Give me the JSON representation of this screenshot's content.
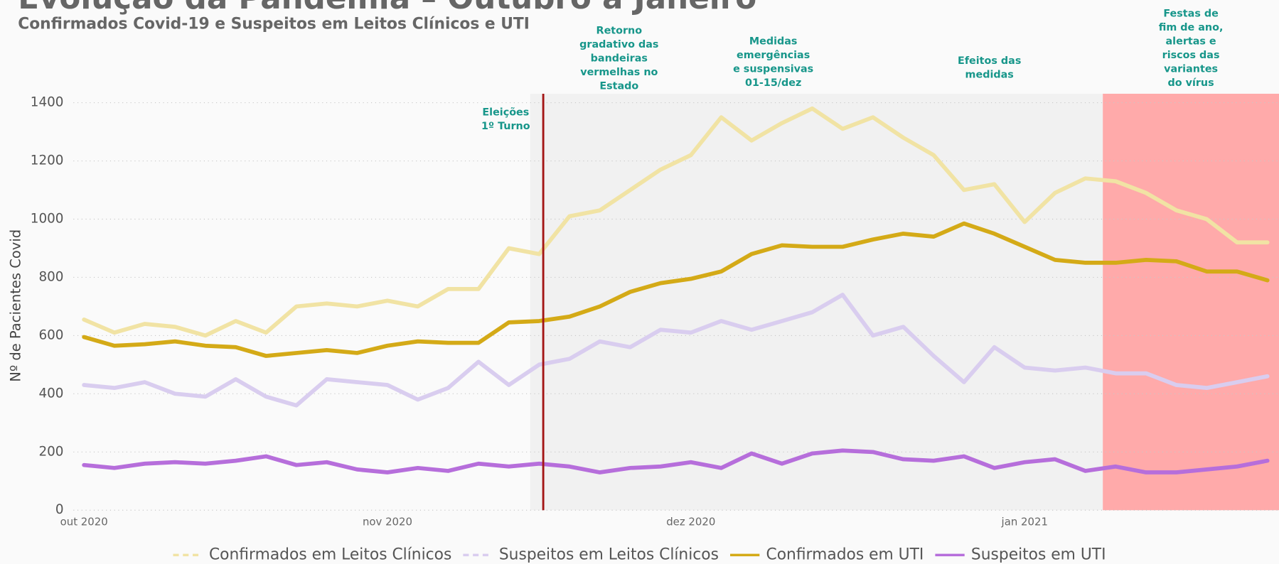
{
  "chart_data": {
    "type": "line",
    "title": "Evolução da Pandemia – Outubro a Janeiro",
    "subtitle": "Confirmados Covid-19 e Suspeitos em Leitos Clínicos e UTI",
    "y_label": "Nº de Pacientes Covid",
    "categories": [
      "out 2020",
      null,
      null,
      null,
      null,
      null,
      null,
      null,
      null,
      null,
      "nov 2020",
      null,
      null,
      null,
      null,
      null,
      null,
      null,
      null,
      null,
      "dez 2020",
      null,
      null,
      null,
      null,
      null,
      null,
      null,
      null,
      null,
      null,
      "jan 2021",
      null,
      null,
      null,
      null,
      null,
      null,
      null,
      null
    ],
    "ylim": [
      0,
      1400
    ],
    "yticks": [
      0,
      200,
      400,
      600,
      800,
      1000,
      1200,
      1400
    ],
    "grid": true,
    "legend": "bottom",
    "series": [
      {
        "name": "Confirmados em Leitos Clínicos",
        "color": "#f1e3a4",
        "dashed": true,
        "values": [
          655,
          610,
          640,
          630,
          600,
          650,
          610,
          700,
          710,
          700,
          720,
          700,
          760,
          760,
          900,
          880,
          1010,
          1030,
          1100,
          1170,
          1220,
          1350,
          1270,
          1330,
          1380,
          1310,
          1350,
          1280,
          1220,
          1100,
          1120,
          990,
          1090,
          1140,
          1130,
          1090,
          1030,
          1000,
          920,
          920
        ]
      },
      {
        "name": "Suspeitos em Leitos Clínicos",
        "color": "#d9cdef",
        "dashed": true,
        "values": [
          430,
          420,
          440,
          400,
          390,
          450,
          390,
          360,
          450,
          440,
          430,
          380,
          420,
          510,
          430,
          500,
          520,
          580,
          560,
          620,
          610,
          650,
          620,
          650,
          680,
          740,
          600,
          630,
          530,
          440,
          560,
          490,
          480,
          490,
          470,
          470,
          430,
          420,
          440,
          460
        ]
      },
      {
        "name": "Confirmados em UTI",
        "color": "#d4aa17",
        "dashed": false,
        "values": [
          595,
          565,
          570,
          580,
          565,
          560,
          530,
          540,
          550,
          540,
          565,
          580,
          575,
          575,
          645,
          650,
          665,
          700,
          750,
          780,
          795,
          820,
          880,
          910,
          905,
          905,
          930,
          950,
          940,
          985,
          950,
          905,
          860,
          850,
          850,
          860,
          855,
          820,
          820,
          790
        ]
      },
      {
        "name": "Suspeitos em UTI",
        "color": "#b66edb",
        "dashed": false,
        "values": [
          155,
          145,
          160,
          165,
          160,
          170,
          185,
          155,
          165,
          140,
          130,
          145,
          135,
          160,
          150,
          160,
          150,
          130,
          145,
          150,
          165,
          145,
          195,
          160,
          195,
          205,
          200,
          175,
          170,
          185,
          145,
          165,
          175,
          135,
          150,
          130,
          130,
          140,
          150,
          170
        ]
      }
    ],
    "annotations": [
      {
        "lines": [
          "Eleições",
          "1º Turno"
        ]
      },
      {
        "lines": [
          "Retorno",
          "gradativo das",
          "bandeiras",
          "vermelhas no",
          "Estado"
        ]
      },
      {
        "lines": [
          "Medidas",
          "emergências",
          "e suspensivas",
          "01-15/dez"
        ]
      },
      {
        "lines": [
          "Efeitos das",
          "medidas"
        ]
      },
      {
        "lines": [
          "Festas de",
          "fim de ano,",
          "alertas e",
          "riscos das",
          "variantes",
          "do vírus"
        ]
      }
    ]
  }
}
